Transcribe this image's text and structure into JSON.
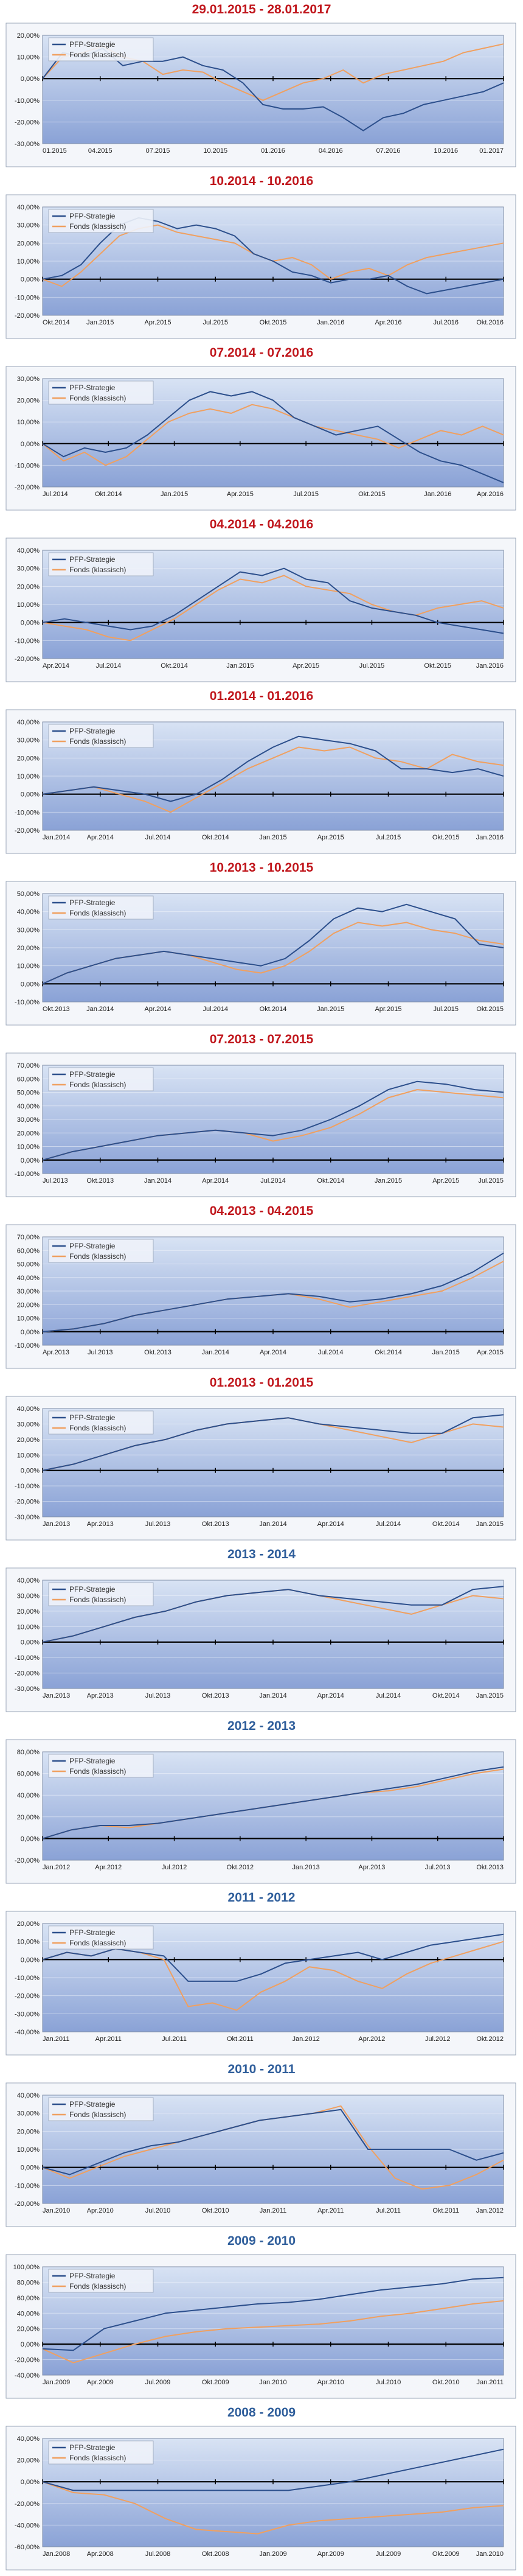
{
  "colors": {
    "title_red": "#c0161c",
    "title_blue": "#2f5e9b",
    "pfp": "#2c4f8c",
    "fonds": "#f0a060",
    "plot_top": "#d8e3f4",
    "plot_bottom": "#8aa2d6"
  },
  "legend": {
    "pfp": "PFP-Strategie",
    "fonds": "Fonds (klassisch)"
  },
  "chart_data": [
    {
      "type": "line",
      "title": "29.01.2015 - 28.01.2017",
      "title_color": "red",
      "yticks": [
        "20,00%",
        "10,00%",
        "0,00%",
        "-10,00%",
        "-20,00%",
        "-30,00%"
      ],
      "ylim": [
        -30,
        20
      ],
      "xticks": [
        "01.2015",
        "04.2015",
        "07.2015",
        "10.2015",
        "01.2016",
        "04.2016",
        "07.2016",
        "10.2016",
        "01.2017"
      ],
      "series": [
        {
          "name": "PFP-Strategie",
          "values": [
            0,
            12,
            10,
            14,
            6,
            8,
            8,
            10,
            6,
            4,
            -2,
            -12,
            -14,
            -14,
            -13,
            -18,
            -24,
            -18,
            -16,
            -12,
            -10,
            -8,
            -6,
            -2
          ]
        },
        {
          "name": "Fonds (klassisch)",
          "values": [
            0,
            10,
            12,
            15,
            10,
            8,
            2,
            4,
            3,
            -2,
            -6,
            -10,
            -6,
            -2,
            0,
            4,
            -2,
            2,
            4,
            6,
            8,
            12,
            14,
            16
          ]
        }
      ]
    },
    {
      "type": "line",
      "title": "10.2014 - 10.2016",
      "title_color": "red",
      "yticks": [
        "40,00%",
        "30,00%",
        "20,00%",
        "10,00%",
        "0,00%",
        "-10,00%",
        "-20,00%"
      ],
      "ylim": [
        -20,
        40
      ],
      "xticks": [
        "Okt.2014",
        "Jan.2015",
        "Apr.2015",
        "Jul.2015",
        "Okt.2015",
        "Jan.2016",
        "Apr.2016",
        "Jul.2016",
        "Okt.2016"
      ],
      "series": [
        {
          "name": "PFP-Strategie",
          "values": [
            0,
            2,
            8,
            20,
            30,
            34,
            32,
            28,
            30,
            28,
            24,
            14,
            10,
            4,
            2,
            -2,
            0,
            0,
            2,
            -4,
            -8,
            -6,
            -4,
            -2,
            0
          ]
        },
        {
          "name": "Fonds (klassisch)",
          "values": [
            0,
            -4,
            4,
            14,
            24,
            28,
            30,
            26,
            24,
            22,
            20,
            14,
            10,
            12,
            8,
            0,
            4,
            6,
            2,
            8,
            12,
            14,
            16,
            18,
            20
          ]
        }
      ]
    },
    {
      "type": "line",
      "title": "07.2014 - 07.2016",
      "title_color": "red",
      "yticks": [
        "30,00%",
        "20,00%",
        "10,00%",
        "0,00%",
        "-10,00%",
        "-20,00%"
      ],
      "ylim": [
        -20,
        30
      ],
      "xticks": [
        "Jul.2014",
        "Okt.2014",
        "Jan.2015",
        "Apr.2015",
        "Jul.2015",
        "Okt.2015",
        "Jan.2016",
        "Apr.2016"
      ],
      "series": [
        {
          "name": "PFP-Strategie",
          "values": [
            0,
            -6,
            -2,
            -4,
            -2,
            4,
            12,
            20,
            24,
            22,
            24,
            20,
            12,
            8,
            4,
            6,
            8,
            2,
            -4,
            -8,
            -10,
            -14,
            -18
          ]
        },
        {
          "name": "Fonds (klassisch)",
          "values": [
            0,
            -8,
            -4,
            -10,
            -6,
            2,
            10,
            14,
            16,
            14,
            18,
            16,
            12,
            8,
            6,
            4,
            2,
            -2,
            2,
            6,
            4,
            8,
            4
          ]
        }
      ]
    },
    {
      "type": "line",
      "title": "04.2014 - 04.2016",
      "title_color": "red",
      "yticks": [
        "40,00%",
        "30,00%",
        "20,00%",
        "10,00%",
        "0,00%",
        "-10,00%",
        "-20,00%"
      ],
      "ylim": [
        -20,
        40
      ],
      "xticks": [
        "Apr.2014",
        "Jul.2014",
        "Okt.2014",
        "Jan.2015",
        "Apr.2015",
        "Jul.2015",
        "Okt.2015",
        "Jan.2016"
      ],
      "series": [
        {
          "name": "PFP-Strategie",
          "values": [
            0,
            2,
            0,
            -2,
            -4,
            -2,
            4,
            12,
            20,
            28,
            26,
            30,
            24,
            22,
            12,
            8,
            6,
            4,
            0,
            -2,
            -4,
            -6
          ]
        },
        {
          "name": "Fonds (klassisch)",
          "values": [
            0,
            -2,
            -4,
            -8,
            -10,
            -4,
            2,
            10,
            18,
            24,
            22,
            26,
            20,
            18,
            16,
            10,
            6,
            4,
            8,
            10,
            12,
            8
          ]
        }
      ]
    },
    {
      "type": "line",
      "title": "01.2014 - 01.2016",
      "title_color": "red",
      "yticks": [
        "40,00%",
        "30,00%",
        "20,00%",
        "10,00%",
        "0,00%",
        "-10,00%",
        "-20,00%"
      ],
      "ylim": [
        -20,
        40
      ],
      "xticks": [
        "Jan.2014",
        "Apr.2014",
        "Jul.2014",
        "Okt.2014",
        "Jan.2015",
        "Apr.2015",
        "Jul.2015",
        "Okt.2015",
        "Jan.2016"
      ],
      "series": [
        {
          "name": "PFP-Strategie",
          "values": [
            0,
            2,
            4,
            2,
            0,
            -4,
            0,
            8,
            18,
            26,
            32,
            30,
            28,
            24,
            14,
            14,
            12,
            14,
            10
          ]
        },
        {
          "name": "Fonds (klassisch)",
          "values": [
            0,
            2,
            4,
            0,
            -4,
            -10,
            -2,
            6,
            14,
            20,
            26,
            24,
            26,
            20,
            18,
            14,
            22,
            18,
            16
          ]
        }
      ]
    },
    {
      "type": "line",
      "title": "10.2013 - 10.2015",
      "title_color": "red",
      "yticks": [
        "50,00%",
        "40,00%",
        "30,00%",
        "20,00%",
        "10,00%",
        "0,00%",
        "-10,00%"
      ],
      "ylim": [
        -10,
        50
      ],
      "xticks": [
        "Okt.2013",
        "Jan.2014",
        "Apr.2014",
        "Jul.2014",
        "Okt.2014",
        "Jan.2015",
        "Apr.2015",
        "Jul.2015",
        "Okt.2015"
      ],
      "series": [
        {
          "name": "PFP-Strategie",
          "values": [
            0,
            6,
            10,
            14,
            16,
            18,
            16,
            14,
            12,
            10,
            14,
            24,
            36,
            42,
            40,
            44,
            40,
            36,
            22,
            20
          ]
        },
        {
          "name": "Fonds (klassisch)",
          "values": [
            0,
            6,
            10,
            14,
            16,
            18,
            16,
            12,
            8,
            6,
            10,
            18,
            28,
            34,
            32,
            34,
            30,
            28,
            24,
            22
          ]
        }
      ]
    },
    {
      "type": "line",
      "title": "07.2013 - 07.2015",
      "title_color": "red",
      "yticks": [
        "70,00%",
        "60,00%",
        "50,00%",
        "40,00%",
        "30,00%",
        "20,00%",
        "10,00%",
        "0,00%",
        "-10,00%"
      ],
      "ylim": [
        -10,
        70
      ],
      "xticks": [
        "Jul.2013",
        "Okt.2013",
        "Jan.2014",
        "Apr.2014",
        "Jul.2014",
        "Okt.2014",
        "Jan.2015",
        "Apr.2015",
        "Jul.2015"
      ],
      "series": [
        {
          "name": "PFP-Strategie",
          "values": [
            0,
            6,
            10,
            14,
            18,
            20,
            22,
            20,
            18,
            22,
            30,
            40,
            52,
            58,
            56,
            52,
            50
          ]
        },
        {
          "name": "Fonds (klassisch)",
          "values": [
            0,
            6,
            10,
            14,
            18,
            20,
            22,
            20,
            14,
            18,
            24,
            34,
            46,
            52,
            50,
            48,
            46
          ]
        }
      ]
    },
    {
      "type": "line",
      "title": "04.2013 - 04.2015",
      "title_color": "red",
      "yticks": [
        "70,00%",
        "60,00%",
        "50,00%",
        "40,00%",
        "30,00%",
        "20,00%",
        "10,00%",
        "0,00%",
        "-10,00%"
      ],
      "ylim": [
        -10,
        70
      ],
      "xticks": [
        "Apr.2013",
        "Jul.2013",
        "Okt.2013",
        "Jan.2014",
        "Apr.2014",
        "Jul.2014",
        "Okt.2014",
        "Jan.2015",
        "Apr.2015"
      ],
      "series": [
        {
          "name": "PFP-Strategie",
          "values": [
            0,
            2,
            6,
            12,
            16,
            20,
            24,
            26,
            28,
            26,
            22,
            24,
            28,
            34,
            44,
            58
          ]
        },
        {
          "name": "Fonds (klassisch)",
          "values": [
            0,
            2,
            6,
            12,
            16,
            20,
            24,
            26,
            28,
            24,
            18,
            22,
            26,
            30,
            40,
            52
          ]
        }
      ]
    },
    {
      "type": "line",
      "title": "01.2013 - 01.2015",
      "title_color": "red",
      "yticks": [
        "40,00%",
        "30,00%",
        "20,00%",
        "10,00%",
        "0,00%",
        "-10,00%",
        "-20,00%",
        "-30,00%"
      ],
      "ylim": [
        -30,
        40
      ],
      "xticks": [
        "Jan.2013",
        "Apr.2013",
        "Jul.2013",
        "Okt.2013",
        "Jan.2014",
        "Apr.2014",
        "Jul.2014",
        "Okt.2014",
        "Jan.2015"
      ],
      "series": [
        {
          "name": "PFP-Strategie",
          "values": [
            0,
            4,
            10,
            16,
            20,
            26,
            30,
            32,
            34,
            30,
            28,
            26,
            24,
            24,
            34,
            36
          ]
        },
        {
          "name": "Fonds (klassisch)",
          "values": [
            0,
            4,
            10,
            16,
            20,
            26,
            30,
            32,
            34,
            30,
            26,
            22,
            18,
            24,
            30,
            28
          ]
        }
      ]
    },
    {
      "type": "line",
      "title": "2013 - 2014",
      "title_color": "blue",
      "yticks": [
        "40,00%",
        "30,00%",
        "20,00%",
        "10,00%",
        "0,00%",
        "-10,00%",
        "-20,00%",
        "-30,00%"
      ],
      "ylim": [
        -30,
        40
      ],
      "xticks": [
        "Jan.2013",
        "Apr.2013",
        "Jul.2013",
        "Okt.2013",
        "Jan.2014",
        "Apr.2014",
        "Jul.2014",
        "Okt.2014",
        "Jan.2015"
      ],
      "series": [
        {
          "name": "PFP-Strategie",
          "values": [
            0,
            4,
            10,
            16,
            20,
            26,
            30,
            32,
            34,
            30,
            28,
            26,
            24,
            24,
            34,
            36
          ]
        },
        {
          "name": "Fonds (klassisch)",
          "values": [
            0,
            4,
            10,
            16,
            20,
            26,
            30,
            32,
            34,
            30,
            26,
            22,
            18,
            24,
            30,
            28
          ]
        }
      ]
    },
    {
      "type": "line",
      "title": "2012 - 2013",
      "title_color": "blue",
      "yticks": [
        "80,00%",
        "60,00%",
        "40,00%",
        "20,00%",
        "0,00%",
        "-20,00%"
      ],
      "ylim": [
        -20,
        80
      ],
      "xticks": [
        "Jan.2012",
        "Apr.2012",
        "Jul.2012",
        "Okt.2012",
        "Jan.2013",
        "Apr.2013",
        "Jul.2013",
        "Okt.2013"
      ],
      "series": [
        {
          "name": "PFP-Strategie",
          "values": [
            0,
            8,
            12,
            12,
            14,
            18,
            22,
            26,
            30,
            34,
            38,
            42,
            46,
            50,
            56,
            62,
            66
          ]
        },
        {
          "name": "Fonds (klassisch)",
          "values": [
            0,
            8,
            12,
            10,
            14,
            18,
            22,
            26,
            30,
            34,
            38,
            42,
            44,
            48,
            54,
            60,
            64
          ]
        }
      ]
    },
    {
      "type": "line",
      "title": "2011 - 2012",
      "title_color": "blue",
      "yticks": [
        "20,00%",
        "10,00%",
        "0,00%",
        "-10,00%",
        "-20,00%",
        "-30,00%",
        "-40,00%"
      ],
      "ylim": [
        -40,
        20
      ],
      "xticks": [
        "Jan.2011",
        "Apr.2011",
        "Jul.2011",
        "Okt.2011",
        "Jan.2012",
        "Apr.2012",
        "Jul.2012",
        "Okt.2012"
      ],
      "series": [
        {
          "name": "PFP-Strategie",
          "values": [
            0,
            4,
            2,
            6,
            4,
            2,
            -12,
            -12,
            -12,
            -8,
            -2,
            0,
            2,
            4,
            0,
            4,
            8,
            10,
            12,
            14
          ]
        },
        {
          "name": "Fonds (klassisch)",
          "values": [
            0,
            4,
            2,
            6,
            4,
            0,
            -26,
            -24,
            -28,
            -18,
            -12,
            -4,
            -6,
            -12,
            -16,
            -8,
            -2,
            2,
            6,
            10
          ]
        }
      ]
    },
    {
      "type": "line",
      "title": "2010 - 2011",
      "title_color": "blue",
      "yticks": [
        "40,00%",
        "30,00%",
        "20,00%",
        "10,00%",
        "0,00%",
        "-10,00%",
        "-20,00%"
      ],
      "ylim": [
        -20,
        40
      ],
      "xticks": [
        "Jan.2010",
        "Apr.2010",
        "Jul.2010",
        "Okt.2010",
        "Jan.2011",
        "Apr.2011",
        "Jul.2011",
        "Okt.2011",
        "Jan.2012"
      ],
      "series": [
        {
          "name": "PFP-Strategie",
          "values": [
            0,
            -4,
            2,
            8,
            12,
            14,
            18,
            22,
            26,
            28,
            30,
            32,
            10,
            10,
            10,
            10,
            4,
            8
          ]
        },
        {
          "name": "Fonds (klassisch)",
          "values": [
            0,
            -6,
            0,
            6,
            10,
            14,
            18,
            22,
            26,
            28,
            30,
            34,
            12,
            -6,
            -12,
            -10,
            -4,
            4
          ]
        }
      ]
    },
    {
      "type": "line",
      "title": "2009 - 2010",
      "title_color": "blue",
      "yticks": [
        "100,00%",
        "80,00%",
        "60,00%",
        "40,00%",
        "20,00%",
        "0,00%",
        "-20,00%",
        "-40,00%"
      ],
      "ylim": [
        -40,
        100
      ],
      "xticks": [
        "Jan.2009",
        "Apr.2009",
        "Jul.2009",
        "Okt.2009",
        "Jan.2010",
        "Apr.2010",
        "Jul.2010",
        "Okt.2010",
        "Jan.2011"
      ],
      "series": [
        {
          "name": "PFP-Strategie",
          "values": [
            -6,
            -8,
            20,
            30,
            40,
            44,
            48,
            52,
            54,
            58,
            64,
            70,
            74,
            78,
            84,
            86
          ]
        },
        {
          "name": "Fonds (klassisch)",
          "values": [
            -6,
            -24,
            -12,
            0,
            10,
            16,
            20,
            22,
            24,
            26,
            30,
            36,
            40,
            46,
            52,
            56
          ]
        }
      ]
    },
    {
      "type": "line",
      "title": "2008 - 2009",
      "title_color": "blue",
      "yticks": [
        "40,00%",
        "20,00%",
        "0,00%",
        "-20,00%",
        "-40,00%",
        "-60,00%"
      ],
      "ylim": [
        -60,
        40
      ],
      "xticks": [
        "Jan.2008",
        "Apr.2008",
        "Jul.2008",
        "Okt.2008",
        "Jan.2009",
        "Apr.2009",
        "Jul.2009",
        "Okt.2009",
        "Jan.2010"
      ],
      "series": [
        {
          "name": "PFP-Strategie",
          "values": [
            0,
            -8,
            -8,
            -8,
            -8,
            -8,
            -8,
            -8,
            -8,
            -4,
            0,
            6,
            12,
            18,
            24,
            30
          ]
        },
        {
          "name": "Fonds (klassisch)",
          "values": [
            0,
            -10,
            -12,
            -20,
            -34,
            -44,
            -46,
            -48,
            -40,
            -36,
            -34,
            -32,
            -30,
            -28,
            -24,
            -22
          ]
        }
      ]
    }
  ]
}
